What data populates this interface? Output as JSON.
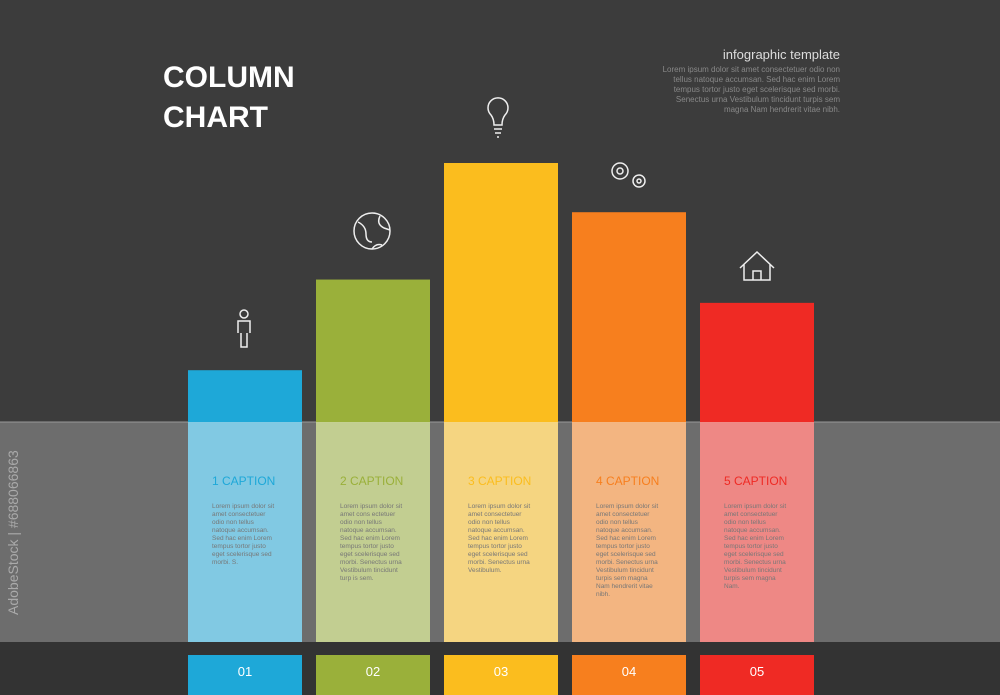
{
  "chart_data": {
    "type": "bar",
    "title": "COLUMN CHART",
    "subtitle": "infographic template",
    "description": "Lorem ipsum dolor sit amet consectetuer odio non tellus natoque accumsan. Sed hac enim Lorem tempus tortor justo eget scelerisque sed morbi. Senectus urna Vestibulum tincidunt turpis sem magna Nam hendrerit vitae nibh.",
    "watermark_id": "AdobeStock | #688066863",
    "categories": [
      "01",
      "02",
      "03",
      "04",
      "05"
    ],
    "values": [
      20,
      55,
      100,
      81,
      46
    ],
    "ylim": [
      0,
      100
    ],
    "colors": [
      "#1ea8d8",
      "#9ab03a",
      "#fbbd1e",
      "#f77f1e",
      "#ef2a24"
    ],
    "captions": [
      "1 CAPTION",
      "2 CAPTION",
      "3 CAPTION",
      "4 CAPTION",
      "5 CAPTION"
    ],
    "caption_texts": [
      "Lorem ipsum dolor sit amet consectetuer odio non tellus natoque accumsan. Sed hac enim Lorem tempus tortor justo eget scelerisque sed morbi. S.",
      "Lorem ipsum dolor sit amet cons ectetuer odio non tellus natoque accumsan. Sed hac enim Lorem tempus tortor justo eget scelerisque sed morbi. Senectus urna Vestibulum tincidunt turp is sem.",
      "Lorem ipsum dolor sit amet consectetuer odio non tellus natoque accumsan. Sed hac enim Lorem tempus tortor justo eget scelerisque sed morbi. Senectus urna Vestibulum.",
      "Lorem ipsum dolor sit amet consectetuer odio non tellus natoque accumsan. Sed hac enim Lorem tempus tortor justo eget scelerisque sed morbi. Senectus urna Vestibulum tincidunt turpis sem magna Nam hendrerit vitae nibh.",
      "Lorem ipsum dolor sit amet consectetuer odio non tellus natoque accumsan. Sed hac enim Lorem tempus tortor justo eget scelerisque sed morbi. Senectus urna Vestibulum tincidunt turpis sem magna Nam."
    ]
  }
}
